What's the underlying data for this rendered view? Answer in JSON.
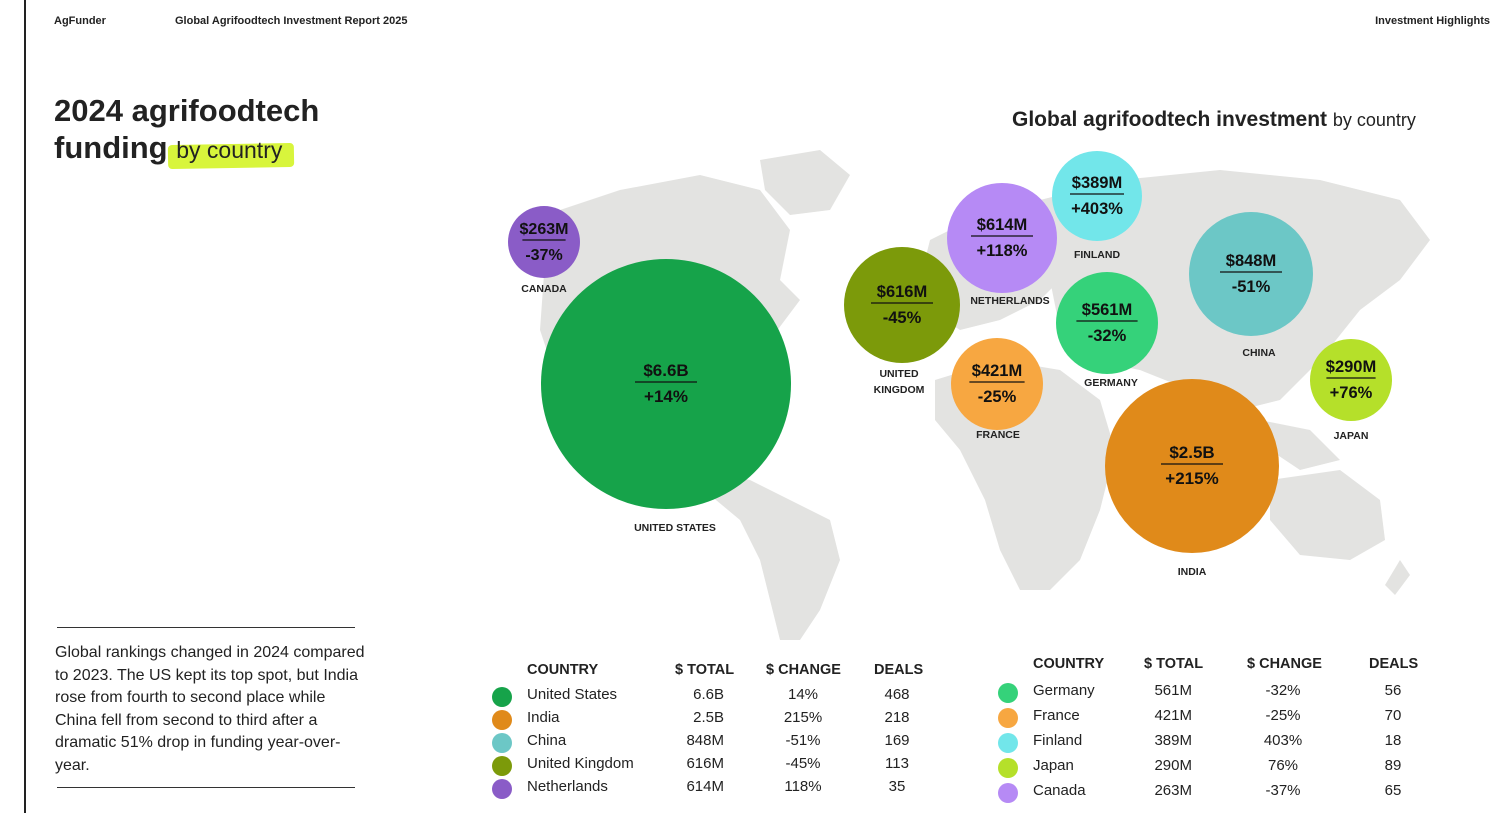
{
  "header": {
    "brand": "AgFunder",
    "report_title": "Global Agrifoodtech Investment Report 2025",
    "section": "Investment Highlights"
  },
  "page": {
    "title_line1": "2024 agrifoodtech",
    "title_line2": "funding",
    "title_accent": "by country",
    "body": "Global rankings changed in 2024 compared to 2023. The US kept its top spot, but India rose from fourth to second place while China fell from second to third after a dramatic 51% drop in funding year-over-year."
  },
  "chart_data": {
    "type": "bubble-map",
    "title": "Global agrifoodtech investment",
    "subtitle": "by country",
    "series": [
      {
        "country": "United States",
        "label": "UNITED STATES",
        "value": "$6.6B",
        "change": "+14%",
        "total_usd_m": 6600,
        "color": "#16a34a"
      },
      {
        "country": "India",
        "label": "INDIA",
        "value": "$2.5B",
        "change": "+215%",
        "total_usd_m": 2500,
        "color": "#e08a1a"
      },
      {
        "country": "China",
        "label": "CHINA",
        "value": "$848M",
        "change": "-51%",
        "total_usd_m": 848,
        "color": "#6cc7c6"
      },
      {
        "country": "United Kingdom",
        "label": "UNITED KINGDOM",
        "value": "$616M",
        "change": "-45%",
        "total_usd_m": 616,
        "color": "#7c9a0a"
      },
      {
        "country": "Netherlands",
        "label": "NETHERLANDS",
        "value": "$614M",
        "change": "+118%",
        "total_usd_m": 614,
        "color": "#b68af5"
      },
      {
        "country": "Germany",
        "label": "GERMANY",
        "value": "$561M",
        "change": "-32%",
        "total_usd_m": 561,
        "color": "#35d27a"
      },
      {
        "country": "France",
        "label": "FRANCE",
        "value": "$421M",
        "change": "-25%",
        "total_usd_m": 421,
        "color": "#f7a741"
      },
      {
        "country": "Finland",
        "label": "FINLAND",
        "value": "$389M",
        "change": "+403%",
        "total_usd_m": 389,
        "color": "#72e6ea"
      },
      {
        "country": "Japan",
        "label": "JAPAN",
        "value": "$290M",
        "change": "+76%",
        "total_usd_m": 290,
        "color": "#b5e02a"
      },
      {
        "country": "Canada",
        "label": "CANADA",
        "value": "$263M",
        "change": "-37%",
        "total_usd_m": 263,
        "color": "#8a5cc7"
      }
    ]
  },
  "tables": {
    "headers": {
      "country": "COUNTRY",
      "total": "$ TOTAL",
      "change": "$ CHANGE",
      "deals": "DEALS"
    },
    "left": [
      {
        "country": "United States",
        "total": "6.6B",
        "change": "14%",
        "deals": "468",
        "color": "#16a34a"
      },
      {
        "country": "India",
        "total": "2.5B",
        "change": "215%",
        "deals": "218",
        "color": "#e08a1a"
      },
      {
        "country": "China",
        "total": "848M",
        "change": "-51%",
        "deals": "169",
        "color": "#6cc7c6"
      },
      {
        "country": "United Kingdom",
        "total": "616M",
        "change": "-45%",
        "deals": "113",
        "color": "#7c9a0a"
      },
      {
        "country": "Netherlands",
        "total": "614M",
        "change": "118%",
        "deals": "35",
        "color": "#8a5cc7"
      }
    ],
    "right": [
      {
        "country": "Germany",
        "total": "561M",
        "change": "-32%",
        "deals": "56",
        "color": "#35d27a"
      },
      {
        "country": "France",
        "total": "421M",
        "change": "-25%",
        "deals": "70",
        "color": "#f7a741"
      },
      {
        "country": "Finland",
        "total": "389M",
        "change": "403%",
        "deals": "18",
        "color": "#72e6ea"
      },
      {
        "country": "Japan",
        "total": "290M",
        "change": "76%",
        "deals": "89",
        "color": "#b5e02a"
      },
      {
        "country": "Canada",
        "total": "263M",
        "change": "-37%",
        "deals": "65",
        "color": "#b68af5"
      }
    ]
  }
}
